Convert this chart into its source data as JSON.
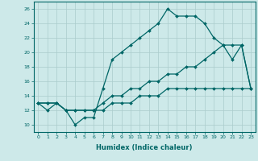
{
  "title": "",
  "xlabel": "Humidex (Indice chaleur)",
  "ylabel": "",
  "bg_color": "#cde9e9",
  "grid_color": "#aacccc",
  "line_color": "#006666",
  "xlim": [
    -0.5,
    23.5
  ],
  "ylim": [
    9,
    27
  ],
  "xticks": [
    0,
    1,
    2,
    3,
    4,
    5,
    6,
    7,
    8,
    9,
    10,
    11,
    12,
    13,
    14,
    15,
    16,
    17,
    18,
    19,
    20,
    21,
    22,
    23
  ],
  "yticks": [
    10,
    12,
    14,
    16,
    18,
    20,
    22,
    24,
    26
  ],
  "series": [
    [
      13,
      12,
      13,
      12,
      10,
      11,
      11,
      15,
      19,
      20,
      21,
      22,
      23,
      24,
      26,
      25,
      25,
      25,
      24,
      22,
      21,
      19,
      21,
      15
    ],
    [
      13,
      13,
      13,
      12,
      12,
      12,
      12,
      13,
      14,
      14,
      15,
      15,
      16,
      16,
      17,
      17,
      18,
      18,
      19,
      20,
      21,
      21,
      21,
      15
    ],
    [
      13,
      13,
      13,
      12,
      12,
      12,
      12,
      12,
      13,
      13,
      13,
      14,
      14,
      14,
      15,
      15,
      15,
      15,
      15,
      15,
      15,
      15,
      15,
      15
    ]
  ]
}
